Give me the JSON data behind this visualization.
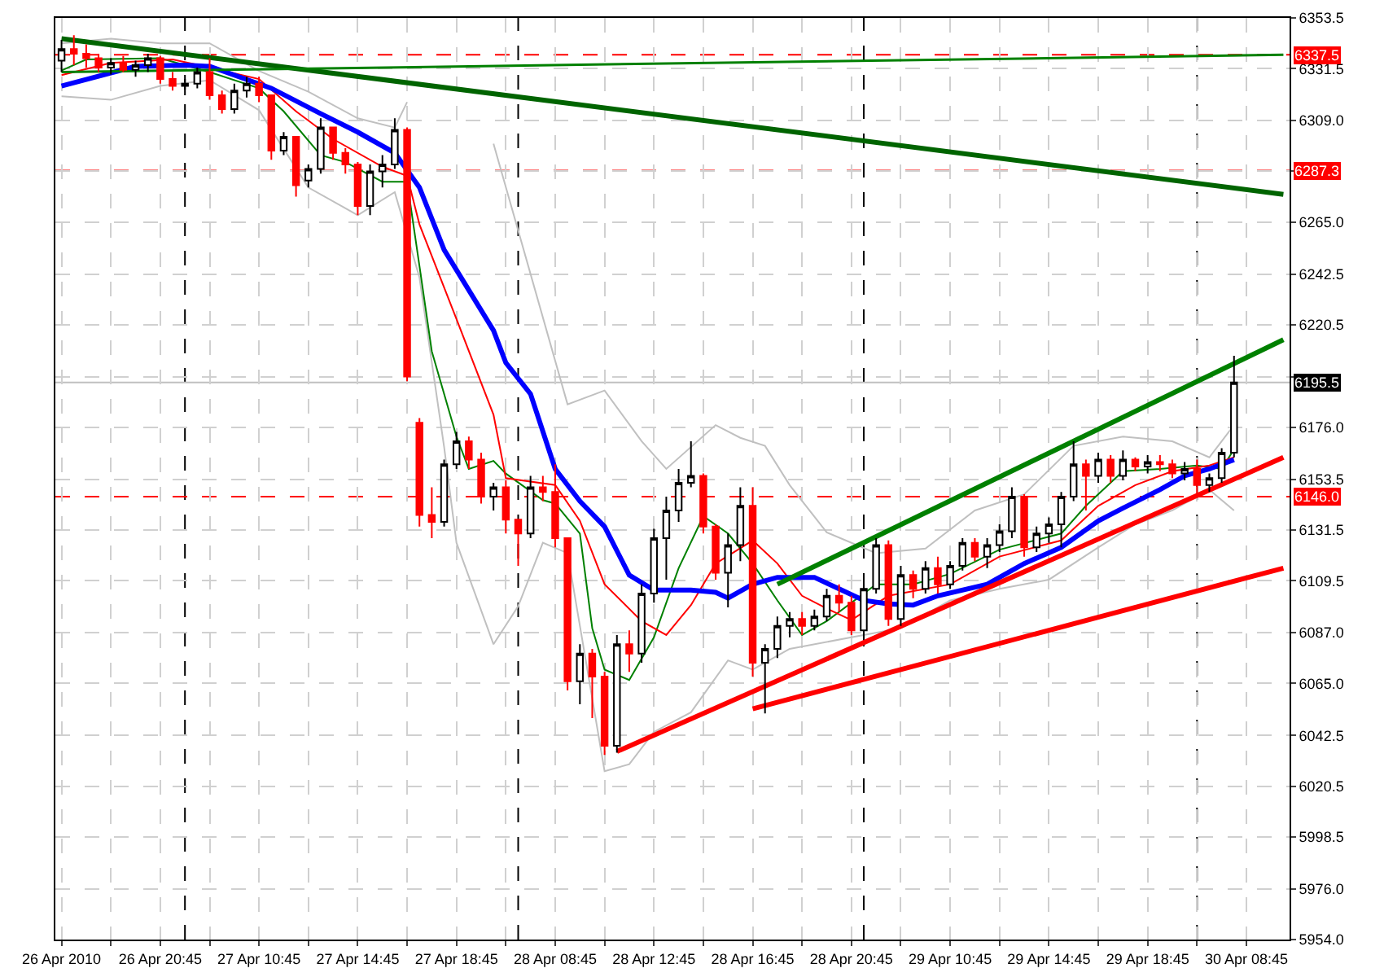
{
  "chart_data": {
    "type": "candlestick",
    "categories": [
      "26 Apr 2010",
      null,
      null,
      null,
      null,
      null,
      null,
      null,
      "26 Apr 20:45",
      null,
      null,
      null,
      null,
      null,
      null,
      null,
      "27 Apr 10:45",
      null,
      null,
      null,
      null,
      null,
      null,
      null,
      "27 Apr 14:45",
      null,
      null,
      null,
      null,
      null,
      null,
      null,
      "27 Apr 18:45",
      null,
      null,
      null,
      null,
      null,
      null,
      null,
      "28 Apr 08:45",
      null,
      null,
      null,
      null,
      null,
      null,
      null,
      "28 Apr 12:45",
      null,
      null,
      null,
      null,
      null,
      null,
      null,
      "28 Apr 16:45",
      null,
      null,
      null,
      null,
      null,
      null,
      null,
      "28 Apr 20:45",
      null,
      null,
      null,
      null,
      null,
      null,
      null,
      "29 Apr 10:45",
      null,
      null,
      null,
      null,
      null,
      null,
      null,
      "29 Apr 14:45",
      null,
      null,
      null,
      null,
      null,
      null,
      null,
      "29 Apr 18:45",
      null,
      null,
      null,
      null,
      null,
      null,
      null,
      "30 Apr 08:45",
      null,
      null,
      null
    ],
    "ohlc": [
      [
        6335,
        6344,
        6330,
        6340
      ],
      [
        6340,
        6346,
        6333,
        6338
      ],
      [
        6338,
        6342,
        6332,
        6336
      ],
      [
        6336,
        6338,
        6330,
        6332
      ],
      [
        6332,
        6336,
        6329,
        6334
      ],
      [
        6334,
        6337,
        6330,
        6331
      ],
      [
        6331,
        6335,
        6328,
        6333
      ],
      [
        6333,
        6338,
        6330,
        6336
      ],
      [
        6336,
        6337,
        6325,
        6327
      ],
      [
        6327,
        6330,
        6322,
        6324
      ],
      [
        6324,
        6327,
        6320,
        6325
      ],
      [
        6325,
        6332,
        6323,
        6330
      ],
      [
        6330,
        6336,
        6318,
        6320
      ],
      [
        6320,
        6322,
        6312,
        6314
      ],
      [
        6314,
        6325,
        6312,
        6322
      ],
      [
        6322,
        6328,
        6319,
        6325
      ],
      [
        6325,
        6328,
        6317,
        6320
      ],
      [
        6320,
        6320,
        6292,
        6296
      ],
      [
        6296,
        6304,
        6294,
        6302
      ],
      [
        6302,
        6302,
        6276,
        6281
      ],
      [
        6283,
        6290,
        6280,
        6288
      ],
      [
        6288,
        6310,
        6286,
        6306
      ],
      [
        6306,
        6306,
        6292,
        6295
      ],
      [
        6295,
        6297,
        6286,
        6290
      ],
      [
        6290,
        6291,
        6268,
        6272
      ],
      [
        6272,
        6290,
        6268,
        6287
      ],
      [
        6287,
        6294,
        6280,
        6290
      ],
      [
        6290,
        6310,
        6288,
        6305
      ],
      [
        6305,
        6306,
        6196,
        6198
      ],
      [
        6178,
        6180,
        6133,
        6138
      ],
      [
        6138,
        6150,
        6128,
        6135
      ],
      [
        6135,
        6162,
        6133,
        6160
      ],
      [
        6160,
        6174,
        6158,
        6170
      ],
      [
        6170,
        6172,
        6158,
        6162
      ],
      [
        6162,
        6165,
        6143,
        6146
      ],
      [
        6146,
        6152,
        6140,
        6150
      ],
      [
        6150,
        6153,
        6130,
        6136
      ],
      [
        6136,
        6136,
        6116,
        6130
      ],
      [
        6130,
        6155,
        6128,
        6150
      ],
      [
        6150,
        6155,
        6144,
        6148
      ],
      [
        6148,
        6160,
        6124,
        6128
      ],
      [
        6128,
        6128,
        6062,
        6066
      ],
      [
        6066,
        6082,
        6056,
        6078
      ],
      [
        6078,
        6080,
        6050,
        6068
      ],
      [
        6068,
        6070,
        6034,
        6038
      ],
      [
        6038,
        6086,
        6035,
        6082
      ],
      [
        6082,
        6088,
        6070,
        6078
      ],
      [
        6078,
        6108,
        6074,
        6104
      ],
      [
        6104,
        6132,
        6100,
        6128
      ],
      [
        6128,
        6146,
        6110,
        6140
      ],
      [
        6140,
        6158,
        6135,
        6152
      ],
      [
        6152,
        6170,
        6150,
        6155
      ],
      [
        6155,
        6156,
        6130,
        6133
      ],
      [
        6133,
        6134,
        6110,
        6113
      ],
      [
        6113,
        6130,
        6098,
        6125
      ],
      [
        6125,
        6150,
        6118,
        6142
      ],
      [
        6142,
        6150,
        6068,
        6074
      ],
      [
        6074,
        6082,
        6052,
        6080
      ],
      [
        6080,
        6094,
        6076,
        6090
      ],
      [
        6090,
        6096,
        6085,
        6093
      ],
      [
        6093,
        6096,
        6086,
        6090
      ],
      [
        6090,
        6097,
        6088,
        6094
      ],
      [
        6094,
        6106,
        6092,
        6103
      ],
      [
        6103,
        6108,
        6096,
        6100
      ],
      [
        6100,
        6103,
        6086,
        6088
      ],
      [
        6088,
        6108,
        6085,
        6106
      ],
      [
        6106,
        6128,
        6104,
        6125
      ],
      [
        6125,
        6127,
        6090,
        6093
      ],
      [
        6093,
        6116,
        6090,
        6112
      ],
      [
        6112,
        6114,
        6102,
        6106
      ],
      [
        6106,
        6118,
        6104,
        6115
      ],
      [
        6115,
        6120,
        6104,
        6108
      ],
      [
        6108,
        6118,
        6106,
        6116
      ],
      [
        6116,
        6128,
        6114,
        6126
      ],
      [
        6126,
        6128,
        6118,
        6120
      ],
      [
        6120,
        6128,
        6115,
        6125
      ],
      [
        6125,
        6134,
        6122,
        6131
      ],
      [
        6131,
        6150,
        6128,
        6146
      ],
      [
        6146,
        6147,
        6120,
        6124
      ],
      [
        6124,
        6133,
        6122,
        6130
      ],
      [
        6130,
        6137,
        6126,
        6134
      ],
      [
        6134,
        6148,
        6124,
        6146
      ],
      [
        6146,
        6170,
        6144,
        6160
      ],
      [
        6160,
        6162,
        6140,
        6155
      ],
      [
        6155,
        6165,
        6152,
        6162
      ],
      [
        6162,
        6164,
        6152,
        6155
      ],
      [
        6155,
        6166,
        6153,
        6162
      ],
      [
        6162,
        6163,
        6157,
        6159
      ],
      [
        6159,
        6164,
        6156,
        6161
      ],
      [
        6161,
        6164,
        6157,
        6160
      ],
      [
        6160,
        6162,
        6154,
        6156
      ],
      [
        6156,
        6161,
        6153,
        6158
      ],
      [
        6158,
        6162,
        6146,
        6151
      ],
      [
        6151,
        6156,
        6148,
        6154
      ],
      [
        6154,
        6167,
        6152,
        6165
      ],
      [
        6165,
        6207,
        6163,
        6195.5
      ],
      null,
      null,
      null,
      null
    ],
    "color": "#000000",
    "colors": [
      "#000000",
      "#ff0000",
      "#ff0000",
      "#ff0000",
      "#000000",
      "#ff0000",
      "#000000",
      "#000000",
      "#ff0000",
      "#ff0000",
      "#000000",
      "#000000",
      "#ff0000",
      "#ff0000",
      "#000000",
      "#000000",
      "#ff0000",
      "#ff0000",
      "#000000",
      "#ff0000",
      "#000000",
      "#000000",
      "#ff0000",
      "#ff0000",
      "#ff0000",
      "#000000",
      "#000000",
      "#000000",
      "#ff0000",
      "#ff0000",
      "#ff0000",
      "#000000",
      "#000000",
      "#ff0000",
      "#ff0000",
      "#000000",
      "#ff0000",
      "#ff0000",
      "#000000",
      "#ff0000",
      "#ff0000",
      "#ff0000",
      "#000000",
      "#ff0000",
      "#ff0000",
      "#000000",
      "#ff0000",
      "#000000",
      "#000000",
      "#000000",
      "#000000",
      "#000000",
      "#ff0000",
      "#ff0000",
      "#000000",
      "#000000",
      "#ff0000",
      "#000000",
      "#000000",
      "#000000",
      "#ff0000",
      "#000000",
      "#000000",
      "#ff0000",
      "#ff0000",
      "#000000",
      "#000000",
      "#ff0000",
      "#000000",
      "#ff0000",
      "#000000",
      "#ff0000",
      "#000000",
      "#000000",
      "#ff0000",
      "#000000",
      "#000000",
      "#000000",
      "#ff0000",
      "#000000",
      "#000000",
      "#000000",
      "#000000",
      "#ff0000",
      "#000000",
      "#ff0000",
      "#000000",
      "#ff0000",
      "#000000",
      "#ff0000",
      "#ff0000",
      "#000000",
      "#ff0000",
      "#000000",
      "#000000",
      "#000000",
      null,
      null,
      null,
      null
    ],
    "series": [
      {
        "type": "line",
        "color": "#c0c0c0",
        "values": [
          6342.5,
          null,
          null,
          null,
          6344.5,
          null,
          null,
          null,
          6342.5,
          null,
          null,
          null,
          6342.5,
          null,
          null,
          null,
          6330.5,
          null,
          null,
          null,
          6321.5,
          null,
          null,
          null,
          6310,
          null,
          null,
          6306,
          6317,
          null,
          null,
          null,
          null,
          null,
          null,
          null,
          null,
          null,
          null,
          null,
          null,
          null,
          null,
          null,
          null,
          null,
          null,
          null,
          null,
          null,
          null,
          null,
          null,
          null,
          null,
          null,
          null,
          null,
          null,
          null,
          null,
          null,
          null,
          null,
          null,
          null,
          null,
          null,
          null,
          null,
          null,
          null,
          null,
          null,
          null,
          null,
          null,
          null,
          null,
          null,
          null,
          null,
          null,
          null,
          null,
          null,
          null,
          null,
          null,
          null,
          null,
          null,
          null,
          null,
          null,
          null,
          null,
          null,
          null,
          null
        ]
      },
      {
        "type": "line",
        "color": "#c0c0c0",
        "values": [
          null,
          null,
          null,
          null,
          null,
          null,
          null,
          null,
          null,
          null,
          null,
          null,
          null,
          null,
          null,
          null,
          null,
          null,
          null,
          null,
          null,
          null,
          null,
          null,
          null,
          null,
          null,
          null,
          null,
          null,
          null,
          null,
          null,
          null,
          null,
          6299,
          null,
          null,
          null,
          null,
          null,
          6186,
          null,
          null,
          6192,
          null,
          null,
          6170,
          null,
          6158,
          null,
          null,
          null,
          6177,
          null,
          6171.5,
          null,
          6168,
          null,
          6151,
          null,
          null,
          6130.5,
          null,
          null,
          null,
          6121.5,
          null,
          null,
          null,
          6123.5,
          null,
          null,
          null,
          6140,
          null,
          null,
          null,
          6147,
          null,
          null,
          null,
          6168,
          null,
          null,
          null,
          6172,
          null,
          null,
          null,
          6170,
          null,
          null,
          6163,
          null,
          6177,
          null,
          null,
          null,
          null
        ]
      },
      {
        "type": "line",
        "color": "#c0c0c0",
        "values": [
          6319.5,
          null,
          null,
          null,
          6318,
          null,
          null,
          null,
          6324,
          null,
          null,
          null,
          6326.5,
          null,
          null,
          null,
          6313.5,
          null,
          null,
          null,
          6280,
          null,
          null,
          null,
          6268,
          null,
          null,
          6278,
          null,
          6241,
          null,
          6167.5,
          6126,
          null,
          null,
          6082,
          null,
          6098.5,
          null,
          6126,
          null,
          6121.5,
          null,
          null,
          6027,
          null,
          6030,
          null,
          6044,
          null,
          null,
          6052.5,
          null,
          null,
          6075,
          null,
          6071,
          null,
          null,
          6080,
          null,
          null,
          null,
          null,
          6085,
          null,
          null,
          null,
          6089,
          null,
          null,
          null,
          6101,
          null,
          null,
          null,
          6106,
          null,
          null,
          null,
          6110,
          null,
          null,
          null,
          6124,
          null,
          null,
          6134,
          null,
          null,
          6140,
          null,
          null,
          6149,
          null,
          6140,
          null,
          null,
          null,
          null
        ]
      },
      {
        "type": "line",
        "color": "#008000",
        "values": [
          6330.7,
          null,
          6335.5,
          null,
          null,
          null,
          null,
          null,
          6336,
          null,
          null,
          null,
          6330,
          null,
          null,
          null,
          6323,
          null,
          6313,
          null,
          null,
          6294,
          null,
          6291,
          null,
          null,
          6282.5,
          null,
          6282.5,
          6246,
          6209,
          null,
          6172,
          6158,
          null,
          6161.5,
          6156,
          null,
          null,
          6144.5,
          6143,
          null,
          6130,
          6089,
          6071,
          null,
          6066.5,
          null,
          6085,
          null,
          6115,
          null,
          6137.5,
          null,
          6130,
          null,
          6117,
          null,
          6101,
          null,
          6086,
          null,
          6092,
          null,
          null,
          null,
          6108,
          null,
          null,
          6108,
          null,
          null,
          6112.5,
          null,
          null,
          null,
          6123,
          null,
          null,
          null,
          null,
          6130,
          null,
          6142,
          null,
          null,
          6157,
          null,
          null,
          6158,
          null,
          null,
          6159.5,
          null,
          6158,
          6166.5,
          null,
          null,
          null,
          null
        ]
      },
      {
        "type": "line",
        "color": "#ff0000",
        "values": [
          6328.7,
          null,
          null,
          null,
          6334,
          null,
          null,
          null,
          null,
          6335.5,
          null,
          null,
          6332,
          null,
          null,
          null,
          6327,
          null,
          null,
          6313,
          null,
          null,
          6301,
          null,
          null,
          null,
          6289,
          null,
          6285,
          6264,
          null,
          null,
          6223,
          null,
          null,
          6181.5,
          6154,
          null,
          null,
          null,
          6151,
          null,
          6135.5,
          null,
          6108,
          null,
          null,
          6092,
          null,
          6086,
          null,
          6099,
          null,
          6117,
          null,
          null,
          6127,
          null,
          6117,
          null,
          6103,
          null,
          6097.5,
          null,
          6092.5,
          null,
          null,
          6103,
          null,
          null,
          null,
          null,
          6108,
          null,
          null,
          null,
          6120,
          null,
          null,
          null,
          null,
          6127,
          null,
          null,
          6142,
          null,
          null,
          6151,
          null,
          null,
          6157,
          null,
          null,
          6159.5,
          null,
          6163,
          null,
          null,
          null,
          null
        ]
      },
      {
        "type": "line",
        "color": "#0000ff",
        "values": [
          6324,
          null,
          null,
          null,
          null,
          null,
          6332.5,
          null,
          null,
          null,
          6333,
          null,
          6332.5,
          null,
          null,
          null,
          null,
          6323,
          null,
          null,
          null,
          6312,
          null,
          null,
          6304,
          null,
          null,
          6295,
          null,
          6280,
          null,
          6253,
          null,
          null,
          null,
          6218,
          6204,
          null,
          6190.5,
          null,
          6158,
          null,
          6144,
          null,
          6133,
          null,
          6112,
          null,
          6105.5,
          null,
          null,
          6105.5,
          null,
          6104.5,
          6102,
          null,
          6108,
          null,
          6111,
          null,
          null,
          6111,
          null,
          6106,
          null,
          6101,
          null,
          6099.5,
          null,
          6099,
          null,
          6103,
          null,
          null,
          null,
          6108,
          null,
          null,
          6117,
          null,
          null,
          6124,
          null,
          null,
          6135.5,
          null,
          6141,
          null,
          null,
          6149,
          null,
          6155,
          null,
          6158,
          null,
          6162,
          null,
          null,
          null,
          null
        ]
      },
      {
        "type": "line",
        "color": "#006400",
        "values": [
          6344.5,
          null,
          null,
          null,
          null,
          null,
          null,
          null,
          null,
          null,
          null,
          null,
          null,
          null,
          null,
          null,
          null,
          null,
          null,
          null,
          null,
          null,
          null,
          null,
          null,
          null,
          null,
          null,
          null,
          null,
          null,
          null,
          null,
          null,
          null,
          null,
          null,
          null,
          null,
          null,
          null,
          null,
          null,
          null,
          null,
          null,
          null,
          null,
          null,
          null,
          null,
          null,
          null,
          null,
          null,
          null,
          null,
          null,
          null,
          null,
          null,
          null,
          null,
          null,
          null,
          null,
          null,
          null,
          null,
          null,
          null,
          null,
          null,
          null,
          null,
          null,
          null,
          null,
          null,
          null,
          null,
          null,
          null,
          null,
          null,
          null,
          null,
          null,
          null,
          null,
          null,
          null,
          null,
          null,
          null,
          null,
          null,
          null,
          null,
          6277
        ]
      },
      {
        "type": "line",
        "color": "#008000",
        "values": [
          6330,
          null,
          null,
          null,
          null,
          null,
          null,
          null,
          null,
          null,
          null,
          null,
          null,
          null,
          null,
          null,
          null,
          null,
          null,
          null,
          null,
          null,
          null,
          null,
          null,
          null,
          null,
          null,
          null,
          null,
          null,
          null,
          null,
          null,
          null,
          null,
          null,
          null,
          null,
          null,
          null,
          null,
          null,
          null,
          null,
          null,
          null,
          null,
          null,
          null,
          null,
          null,
          null,
          null,
          null,
          null,
          null,
          null,
          null,
          null,
          null,
          null,
          null,
          null,
          null,
          null,
          null,
          null,
          null,
          null,
          null,
          null,
          null,
          null,
          null,
          null,
          null,
          null,
          null,
          null,
          null,
          null,
          null,
          null,
          null,
          null,
          null,
          null,
          null,
          null,
          null,
          null,
          null,
          null,
          null,
          null,
          null,
          null,
          null,
          6337.5
        ]
      },
      {
        "type": "line",
        "color": "#008000",
        "values": [
          null,
          null,
          null,
          null,
          null,
          null,
          null,
          null,
          null,
          null,
          null,
          null,
          null,
          null,
          null,
          null,
          null,
          null,
          null,
          null,
          null,
          null,
          null,
          null,
          null,
          null,
          null,
          null,
          null,
          null,
          null,
          null,
          null,
          null,
          null,
          null,
          null,
          null,
          null,
          null,
          null,
          null,
          null,
          null,
          null,
          null,
          null,
          null,
          null,
          null,
          null,
          null,
          null,
          null,
          null,
          null,
          null,
          null,
          6108,
          null,
          null,
          null,
          null,
          null,
          null,
          null,
          null,
          null,
          null,
          null,
          null,
          null,
          null,
          null,
          null,
          null,
          null,
          null,
          null,
          null,
          null,
          null,
          null,
          null,
          null,
          null,
          null,
          null,
          null,
          null,
          null,
          null,
          null,
          null,
          null,
          null,
          null,
          null,
          null,
          6214
        ]
      },
      {
        "type": "line",
        "color": "#ff0000",
        "values": [
          null,
          null,
          null,
          null,
          null,
          null,
          null,
          null,
          null,
          null,
          null,
          null,
          null,
          null,
          null,
          null,
          null,
          null,
          null,
          null,
          null,
          null,
          null,
          null,
          null,
          null,
          null,
          null,
          null,
          null,
          null,
          null,
          null,
          null,
          null,
          null,
          null,
          null,
          null,
          null,
          null,
          null,
          null,
          null,
          null,
          6035.5,
          null,
          null,
          null,
          null,
          null,
          null,
          null,
          null,
          null,
          null,
          null,
          null,
          null,
          null,
          null,
          null,
          null,
          null,
          null,
          null,
          null,
          null,
          null,
          null,
          null,
          null,
          null,
          null,
          null,
          null,
          null,
          null,
          null,
          null,
          null,
          null,
          null,
          null,
          null,
          null,
          null,
          null,
          null,
          null,
          null,
          null,
          null,
          null,
          null,
          null,
          null,
          null,
          null,
          6163
        ]
      },
      {
        "type": "line",
        "color": "#ff0000",
        "values": [
          null,
          null,
          null,
          null,
          null,
          null,
          null,
          null,
          null,
          null,
          null,
          null,
          null,
          null,
          null,
          null,
          null,
          null,
          null,
          null,
          null,
          null,
          null,
          null,
          null,
          null,
          null,
          null,
          null,
          null,
          null,
          null,
          null,
          null,
          null,
          null,
          null,
          null,
          null,
          null,
          null,
          null,
          null,
          null,
          null,
          null,
          null,
          null,
          null,
          null,
          null,
          null,
          null,
          null,
          null,
          null,
          6054,
          null,
          null,
          null,
          null,
          null,
          null,
          null,
          null,
          null,
          null,
          null,
          null,
          null,
          null,
          null,
          null,
          null,
          null,
          null,
          null,
          null,
          null,
          null,
          null,
          null,
          null,
          null,
          null,
          null,
          null,
          null,
          null,
          null,
          null,
          null,
          null,
          null,
          null,
          null,
          null,
          null,
          null,
          6115
        ]
      }
    ],
    "ref_lines": [
      {
        "axis": "y",
        "value": 6337.5,
        "label": "6337.5",
        "color": "#ff0000",
        "line_style": "dashed"
      },
      {
        "axis": "y",
        "value": 6287.3,
        "label": "6287.3",
        "color": "#ff0000",
        "line_style": "dashed"
      },
      {
        "axis": "y",
        "value": 6146.0,
        "label": "6146.0",
        "color": "#ff0000",
        "line_style": "dashed"
      },
      {
        "axis": "y",
        "value": 6195.5,
        "label": "6195.5",
        "color": "#c0c0c0",
        "line_style": "solid"
      }
    ],
    "ylim": [
      5954,
      6353.5
    ],
    "yticks": [
      6353.5,
      6331.5,
      {
        "value": 6309,
        "label": "6309.0"
      },
      {
        "value": 6287,
        "label": null
      },
      {
        "value": 6265,
        "label": "6265.0"
      },
      6242.5,
      6220.5,
      {
        "value": 6198,
        "label": null
      },
      {
        "value": 6176,
        "label": "6176.0"
      },
      6153.5,
      6131.5,
      6109.5,
      {
        "value": 6087,
        "label": "6087.0"
      },
      {
        "value": 6065,
        "label": "6065.0"
      },
      6042.5,
      6020.5,
      5998.5,
      {
        "value": 5976,
        "label": "5976.0"
      },
      {
        "value": 5954,
        "label": "5954.0"
      }
    ],
    "grid": true
  }
}
